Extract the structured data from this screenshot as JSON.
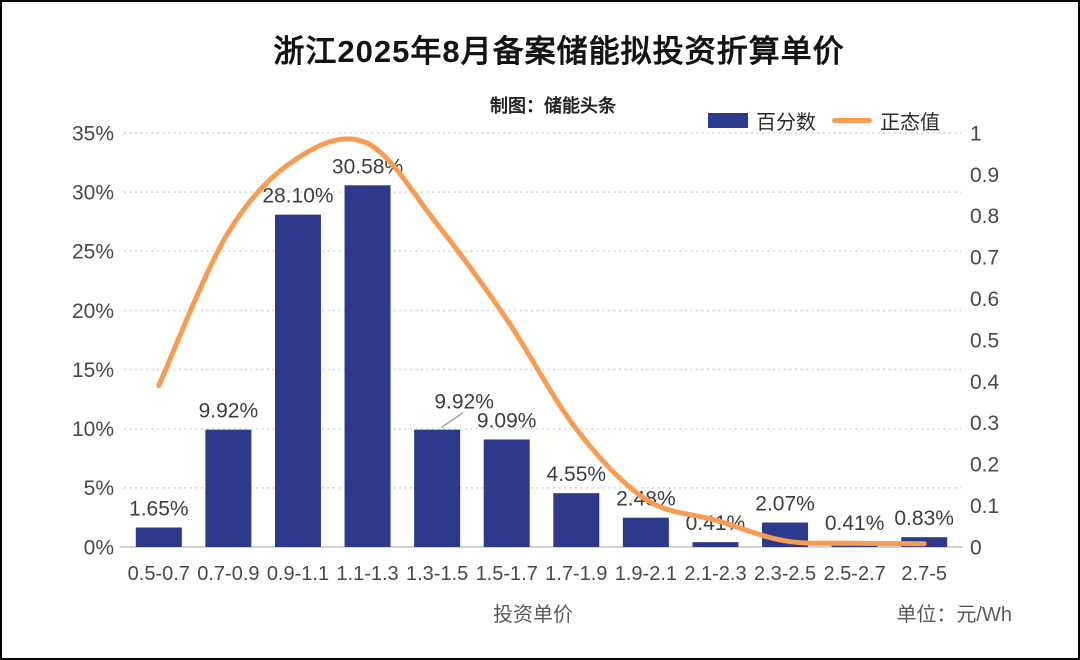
{
  "header": {
    "title": "浙江2025年8月备案储能拟投资折算单价",
    "subtitle": "制图：储能头条"
  },
  "legend": [
    {
      "label": "百分数",
      "type": "bar"
    },
    {
      "label": "正态值",
      "type": "line"
    }
  ],
  "footer": {
    "x_axis_title": "投资单价",
    "unit_label": "单位：元/Wh"
  },
  "colors": {
    "bar": "#2D3A8C",
    "line": "#F79C53",
    "grid": "#D9D9D9",
    "baseline": "#D3D3D3",
    "tick_text": "#484848",
    "data_label": "#3D3D3D",
    "leader_line": "#A6A6A6"
  },
  "chart_data": {
    "type": "bar",
    "combo": "bar+line",
    "title": "浙江2025年8月备案储能拟投资折算单价",
    "xlabel": "投资单价",
    "categories": [
      "0.5-0.7",
      "0.7-0.9",
      "0.9-1.1",
      "1.1-1.3",
      "1.3-1.5",
      "1.5-1.7",
      "1.7-1.9",
      "1.9-2.1",
      "2.1-2.3",
      "2.3-2.5",
      "2.5-2.7",
      "2.7-5"
    ],
    "series": [
      {
        "name": "百分数",
        "type": "bar",
        "axis": "left",
        "unit": "%",
        "values": [
          1.65,
          9.92,
          28.1,
          30.58,
          9.92,
          9.09,
          4.55,
          2.48,
          0.41,
          2.07,
          0.41,
          0.83
        ],
        "labels": [
          "1.65%",
          "9.92%",
          "28.10%",
          "30.58%",
          "9.92%",
          "9.09%",
          "4.55%",
          "2.48%",
          "0.41%",
          "2.07%",
          "0.41%",
          "0.83%"
        ]
      },
      {
        "name": "正态值",
        "type": "line",
        "axis": "right",
        "values": [
          0.39,
          0.76,
          0.94,
          0.975,
          0.78,
          0.55,
          0.285,
          0.115,
          0.065,
          0.015,
          0.009,
          0.008
        ]
      }
    ],
    "left_axis": {
      "ticks": [
        "0%",
        "5%",
        "10%",
        "15%",
        "20%",
        "25%",
        "30%",
        "35%"
      ],
      "min": 0,
      "max": 35
    },
    "right_axis": {
      "ticks": [
        "0",
        "0.1",
        "0.2",
        "0.3",
        "0.4",
        "0.5",
        "0.6",
        "0.7",
        "0.8",
        "0.9",
        "1"
      ],
      "min": 0,
      "max": 1
    },
    "grid": {
      "horizontal": "dotted"
    },
    "legend_position": "top-right",
    "label_offset_index": 4
  }
}
